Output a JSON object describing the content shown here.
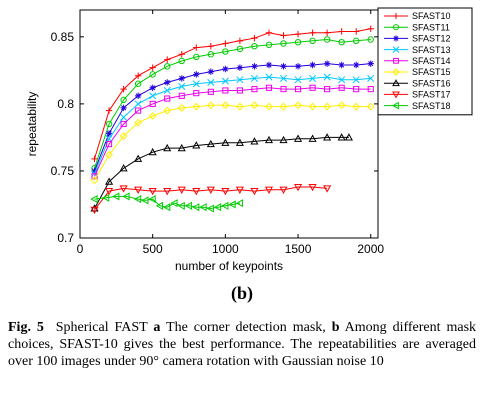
{
  "panel_label": "(b)",
  "caption": {
    "figure_label": "Fig. 5",
    "title": "Spherical FAST",
    "part_a_letter": "a",
    "part_a_text": "The corner detection mask,",
    "part_b_letter": "b",
    "part_b_text": "Among different mask choices, SFAST-10 gives the best performance. The repeatabilities are averaged over 100 images under 90° camera rotation with Gaussian noise 10"
  },
  "chart_data": {
    "type": "line",
    "title": "",
    "xlabel": "number of keypoints",
    "ylabel": "repeatability",
    "xlim": [
      0,
      2050
    ],
    "ylim": [
      0.7,
      0.87
    ],
    "xticks": [
      0,
      500,
      1000,
      1500,
      2000
    ],
    "yticks": [
      0.7,
      0.75,
      0.8,
      0.85
    ],
    "xtick_labels": [
      "0",
      "500",
      "1000",
      "1500",
      "2000"
    ],
    "ytick_labels": [
      "0.7",
      "0.75",
      "0.8",
      "0.85"
    ],
    "grid": false,
    "legend_position": "top-right",
    "series": [
      {
        "name": "SFAST10",
        "color": "#ff0000",
        "marker": "plus",
        "x": [
          100,
          200,
          300,
          400,
          500,
          600,
          700,
          800,
          900,
          1000,
          1100,
          1200,
          1300,
          1400,
          1500,
          1600,
          1700,
          1800,
          1900,
          2000
        ],
        "y": [
          0.759,
          0.795,
          0.811,
          0.821,
          0.827,
          0.833,
          0.837,
          0.842,
          0.843,
          0.845,
          0.847,
          0.849,
          0.853,
          0.851,
          0.852,
          0.853,
          0.853,
          0.854,
          0.854,
          0.856
        ]
      },
      {
        "name": "SFAST11",
        "color": "#00cc00",
        "marker": "circle",
        "x": [
          100,
          200,
          300,
          400,
          500,
          600,
          700,
          800,
          900,
          1000,
          1100,
          1200,
          1300,
          1400,
          1500,
          1600,
          1700,
          1800,
          1900,
          2000
        ],
        "y": [
          0.752,
          0.785,
          0.803,
          0.815,
          0.822,
          0.828,
          0.832,
          0.835,
          0.837,
          0.839,
          0.841,
          0.843,
          0.844,
          0.845,
          0.846,
          0.847,
          0.848,
          0.846,
          0.847,
          0.848
        ]
      },
      {
        "name": "SFAST12",
        "color": "#2200dd",
        "marker": "star",
        "x": [
          100,
          200,
          300,
          400,
          500,
          600,
          700,
          800,
          900,
          1000,
          1100,
          1200,
          1300,
          1400,
          1500,
          1600,
          1700,
          1800,
          1900,
          2000
        ],
        "y": [
          0.75,
          0.778,
          0.797,
          0.806,
          0.812,
          0.816,
          0.819,
          0.822,
          0.824,
          0.826,
          0.827,
          0.828,
          0.829,
          0.828,
          0.828,
          0.829,
          0.83,
          0.829,
          0.829,
          0.83
        ]
      },
      {
        "name": "SFAST13",
        "color": "#00c8ff",
        "marker": "x",
        "x": [
          100,
          200,
          300,
          400,
          500,
          600,
          700,
          800,
          900,
          1000,
          1100,
          1200,
          1300,
          1400,
          1500,
          1600,
          1700,
          1800,
          1900,
          2000
        ],
        "y": [
          0.748,
          0.774,
          0.79,
          0.8,
          0.806,
          0.81,
          0.813,
          0.815,
          0.816,
          0.817,
          0.818,
          0.819,
          0.82,
          0.819,
          0.818,
          0.819,
          0.82,
          0.818,
          0.818,
          0.819
        ]
      },
      {
        "name": "SFAST14",
        "color": "#ee00ee",
        "marker": "square",
        "x": [
          100,
          200,
          300,
          400,
          500,
          600,
          700,
          800,
          900,
          1000,
          1100,
          1200,
          1300,
          1400,
          1500,
          1600,
          1700,
          1800,
          1900,
          2000
        ],
        "y": [
          0.746,
          0.77,
          0.785,
          0.795,
          0.8,
          0.804,
          0.806,
          0.808,
          0.809,
          0.81,
          0.81,
          0.811,
          0.812,
          0.811,
          0.811,
          0.812,
          0.811,
          0.812,
          0.811,
          0.811
        ]
      },
      {
        "name": "SFAST15",
        "color": "#ffee00",
        "marker": "diamond",
        "x": [
          100,
          200,
          300,
          400,
          500,
          600,
          700,
          800,
          900,
          1000,
          1100,
          1200,
          1300,
          1400,
          1500,
          1600,
          1700,
          1800,
          1900,
          2000
        ],
        "y": [
          0.743,
          0.762,
          0.776,
          0.786,
          0.791,
          0.795,
          0.797,
          0.798,
          0.799,
          0.799,
          0.798,
          0.799,
          0.798,
          0.798,
          0.799,
          0.798,
          0.798,
          0.799,
          0.798,
          0.798
        ]
      },
      {
        "name": "SFAST16",
        "color": "#000000",
        "marker": "triangle-up",
        "x": [
          100,
          200,
          300,
          400,
          500,
          600,
          700,
          800,
          900,
          1000,
          1100,
          1200,
          1300,
          1400,
          1500,
          1600,
          1700,
          1800,
          1850
        ],
        "y": [
          0.722,
          0.742,
          0.752,
          0.759,
          0.764,
          0.767,
          0.767,
          0.769,
          0.77,
          0.771,
          0.771,
          0.772,
          0.773,
          0.773,
          0.774,
          0.774,
          0.775,
          0.775,
          0.775
        ]
      },
      {
        "name": "SFAST17",
        "color": "#ff0000",
        "marker": "triangle-down",
        "x": [
          100,
          200,
          300,
          400,
          500,
          600,
          700,
          800,
          900,
          1000,
          1100,
          1200,
          1300,
          1400,
          1500,
          1600,
          1700
        ],
        "y": [
          0.721,
          0.735,
          0.737,
          0.736,
          0.735,
          0.735,
          0.736,
          0.735,
          0.736,
          0.735,
          0.736,
          0.735,
          0.736,
          0.736,
          0.738,
          0.738,
          0.737
        ]
      },
      {
        "name": "SFAST18",
        "color": "#00cc00",
        "marker": "triangle-left",
        "x": [
          100,
          180,
          250,
          320,
          400,
          450,
          500,
          550,
          600,
          650,
          700,
          750,
          800,
          850,
          900,
          950,
          1000,
          1050,
          1100
        ],
        "y": [
          0.729,
          0.73,
          0.731,
          0.731,
          0.729,
          0.728,
          0.729,
          0.724,
          0.723,
          0.726,
          0.724,
          0.724,
          0.723,
          0.723,
          0.722,
          0.723,
          0.724,
          0.725,
          0.726
        ]
      }
    ]
  }
}
